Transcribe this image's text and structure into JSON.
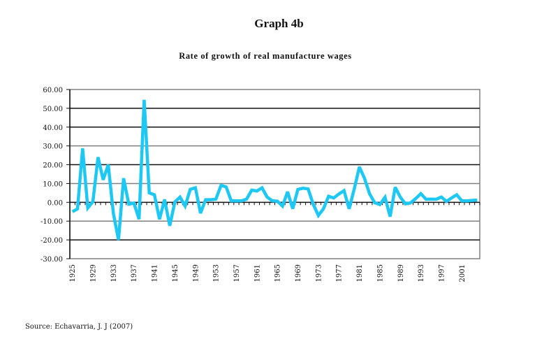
{
  "figure": {
    "title": "Graph 4b",
    "subtitle": "Rate of growth of real manufacture wages",
    "source": "Source: Echavarria, J. J (2007)"
  },
  "chart_data": {
    "type": "line",
    "title": "Graph 4b",
    "subtitle": "Rate of growth of real manufacture wages",
    "xlabel": "",
    "ylabel": "",
    "ylim": [
      -30,
      60
    ],
    "yticks": [
      60,
      50,
      40,
      30,
      20,
      10,
      0,
      -10,
      -20,
      -30
    ],
    "ytick_labels": [
      "60.00",
      "50.00",
      "40.00",
      "30.00",
      "20.00",
      "10.00",
      "0.00",
      "-10.00",
      "-20.00",
      "-30.00"
    ],
    "grid": true,
    "legend": "none",
    "line_color": "#1ec8f5",
    "xtick_labels": [
      "1925",
      "1929",
      "1933",
      "1937",
      "1941",
      "1945",
      "1949",
      "1953",
      "1957",
      "1961",
      "1965",
      "1969",
      "1973",
      "1977",
      "1981",
      "1985",
      "1989",
      "1993",
      "1997",
      "2001"
    ],
    "x": [
      1925,
      1926,
      1927,
      1928,
      1929,
      1930,
      1931,
      1932,
      1933,
      1934,
      1935,
      1936,
      1937,
      1938,
      1939,
      1940,
      1941,
      1942,
      1943,
      1944,
      1945,
      1946,
      1947,
      1948,
      1949,
      1950,
      1951,
      1952,
      1953,
      1954,
      1955,
      1956,
      1957,
      1958,
      1959,
      1960,
      1961,
      1962,
      1963,
      1964,
      1965,
      1966,
      1967,
      1968,
      1969,
      1970,
      1971,
      1972,
      1973,
      1974,
      1975,
      1976,
      1977,
      1978,
      1979,
      1980,
      1981,
      1982,
      1983,
      1984,
      1985,
      1986,
      1987,
      1988,
      1989,
      1990,
      1991,
      1992,
      1993,
      1994,
      1995,
      1996,
      1997,
      1998,
      1999,
      2000,
      2001,
      2002,
      2003,
      2004
    ],
    "series": [
      {
        "name": "Rate of growth of real manufacture wages",
        "values": [
          -5.0,
          -3.5,
          28.7,
          -3.0,
          0.3,
          24.0,
          12.0,
          20.0,
          -6.0,
          -20.0,
          12.8,
          -1.0,
          -0.4,
          -9.0,
          54.5,
          5.0,
          4.0,
          -9.0,
          1.5,
          -12.5,
          0.2,
          2.8,
          -2.0,
          6.9,
          7.7,
          -5.8,
          1.4,
          1.4,
          1.7,
          9.0,
          8.2,
          0.8,
          0.8,
          0.8,
          1.7,
          6.5,
          6.0,
          7.7,
          2.8,
          0.8,
          0.6,
          -2.0,
          5.6,
          -3.4,
          6.8,
          7.5,
          7.1,
          -1.0,
          -7.0,
          -3.4,
          3.2,
          2.3,
          4.4,
          6.2,
          -3.5,
          7.0,
          18.8,
          12.8,
          4.5,
          -0.2,
          -1.2,
          2.7,
          -7.6,
          8.0,
          2.7,
          -0.8,
          -0.3,
          2.0,
          4.6,
          1.6,
          1.7,
          1.6,
          2.8,
          0.5,
          2.3,
          4.0,
          0.8,
          0.8,
          1.0,
          1.2
        ]
      }
    ]
  }
}
